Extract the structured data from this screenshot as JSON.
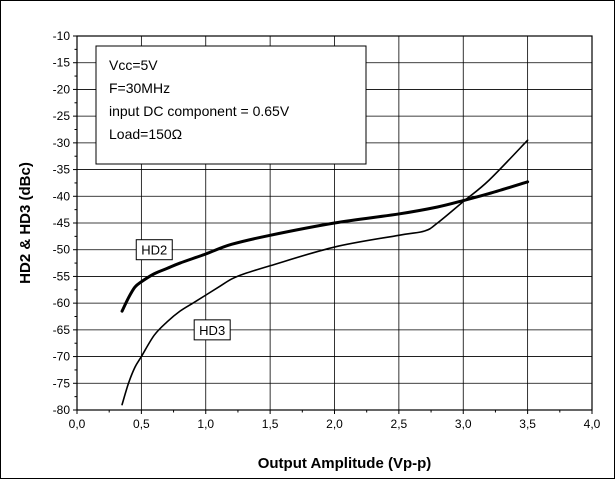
{
  "chart_data": {
    "type": "line",
    "xlabel": "Output Amplitude  (Vp-p)",
    "ylabel": "HD2 & HD3  (dBc)",
    "xlim": [
      0,
      4
    ],
    "ylim": [
      -80,
      -10
    ],
    "x_ticks": [
      0,
      0.5,
      1.0,
      1.5,
      2.0,
      2.5,
      3.0,
      3.5,
      4.0
    ],
    "x_tick_labels": [
      "0,0",
      "0,5",
      "1,0",
      "1,5",
      "2,0",
      "2,5",
      "3,0",
      "3,5",
      "4,0"
    ],
    "y_ticks": [
      -10,
      -15,
      -20,
      -25,
      -30,
      -35,
      -40,
      -45,
      -50,
      -55,
      -60,
      -65,
      -70,
      -75,
      -80
    ],
    "y_tick_labels": [
      "-10",
      "-15",
      "-20",
      "-25",
      "-30",
      "-35",
      "-40",
      "-45",
      "-50",
      "-55",
      "-60",
      "-65",
      "-70",
      "-75",
      "-80"
    ],
    "grid": true,
    "conditions_box": {
      "placement": "top-left",
      "lines": [
        "Vcc=5V",
        "F=30MHz",
        "input DC component = 0.65V",
        "Load=150Ω"
      ]
    },
    "series": [
      {
        "name": "HD2",
        "x": [
          0.35,
          0.4,
          0.45,
          0.5,
          0.6,
          0.7,
          0.8,
          1.0,
          1.2,
          1.5,
          2.0,
          2.5,
          2.8,
          3.0,
          3.2,
          3.5
        ],
        "y": [
          -61.5,
          -59,
          -57,
          -56,
          -54.5,
          -53.5,
          -52.5,
          -50.8,
          -49,
          -47.3,
          -45,
          -43.3,
          -42,
          -40.8,
          -39.5,
          -37.3
        ],
        "label_anchor": {
          "x": 0.6,
          "y": -50
        },
        "color": "#000000"
      },
      {
        "name": "HD3",
        "x": [
          0.35,
          0.4,
          0.45,
          0.5,
          0.6,
          0.7,
          0.8,
          0.9,
          1.0,
          1.1,
          1.2,
          1.3,
          1.5,
          2.0,
          2.5,
          2.7,
          2.8,
          3.0,
          3.2,
          3.5
        ],
        "y": [
          -79,
          -75,
          -72,
          -70,
          -66,
          -63.5,
          -61.5,
          -60,
          -58.5,
          -57,
          -55.5,
          -54.5,
          -53,
          -49.5,
          -47.3,
          -46.5,
          -45,
          -41,
          -37,
          -29.5
        ],
        "label_anchor": {
          "x": 1.05,
          "y": -65
        },
        "color": "#000000"
      }
    ]
  }
}
